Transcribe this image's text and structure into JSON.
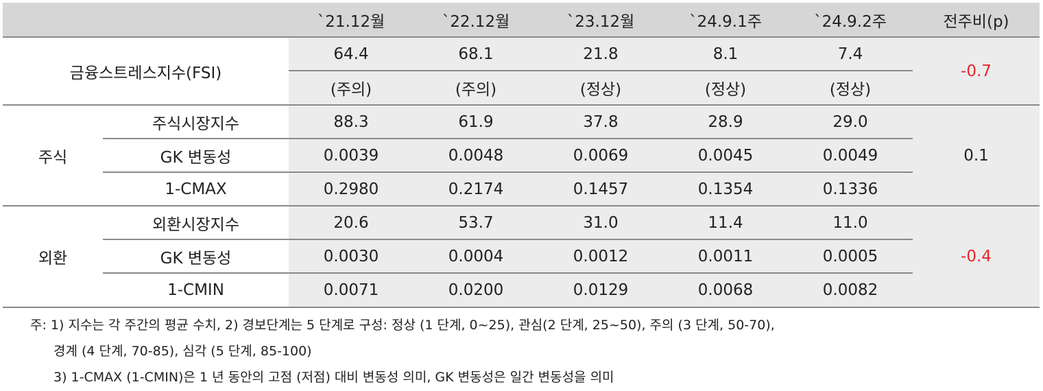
{
  "header": {
    "columns": [
      "`21.12월",
      "`22.12월",
      "`23.12월",
      "`24.9.1주",
      "`24.9.2주",
      "전주비(p)"
    ]
  },
  "fsi": {
    "label": "금융스트레스지수(FSI)",
    "values": [
      "64.4",
      "68.1",
      "21.8",
      "8.1",
      "7.4"
    ],
    "status": [
      "(주의)",
      "(주의)",
      "(정상)",
      "(정상)",
      "(정상)"
    ],
    "change": "-0.7"
  },
  "stock": {
    "group": "주식",
    "rows": [
      {
        "label": "주식시장지수",
        "values": [
          "88.3",
          "61.9",
          "37.8",
          "28.9",
          "29.0"
        ]
      },
      {
        "label": "GK 변동성",
        "values": [
          "0.0039",
          "0.0048",
          "0.0069",
          "0.0045",
          "0.0049"
        ]
      },
      {
        "label": "1-CMAX",
        "values": [
          "0.2980",
          "0.2174",
          "0.1457",
          "0.1354",
          "0.1336"
        ]
      }
    ],
    "change": "0.1"
  },
  "fx": {
    "group": "외환",
    "rows": [
      {
        "label": "외환시장지수",
        "values": [
          "20.6",
          "53.7",
          "31.0",
          "11.4",
          "11.0"
        ]
      },
      {
        "label": "GK 변동성",
        "values": [
          "0.0030",
          "0.0004",
          "0.0012",
          "0.0011",
          "0.0005"
        ]
      },
      {
        "label": "1-CMIN",
        "values": [
          "0.0071",
          "0.0200",
          "0.0129",
          "0.0068",
          "0.0082"
        ]
      }
    ],
    "change": "-0.4"
  },
  "notes": [
    "주: 1) 지수는 각 주간의 평균 수치, 2) 경보단계는 5 단계로 구성: 정상 (1 단계, 0~25), 관심(2 단계, 25~50), 주의 (3 단계, 50-70),",
    "경계 (4 단계, 70-85), 심각 (5 단계, 85-100)",
    "3) 1-CMAX (1-CMIN)은 1 년 동안의 고점 (저점) 대비 변동성 의미, GK 변동성은 일간 변동성을 의미"
  ],
  "colors": {
    "header_bg": "#d6d6d6",
    "shade_bg": "#ececec",
    "negative": "#e8262a"
  }
}
